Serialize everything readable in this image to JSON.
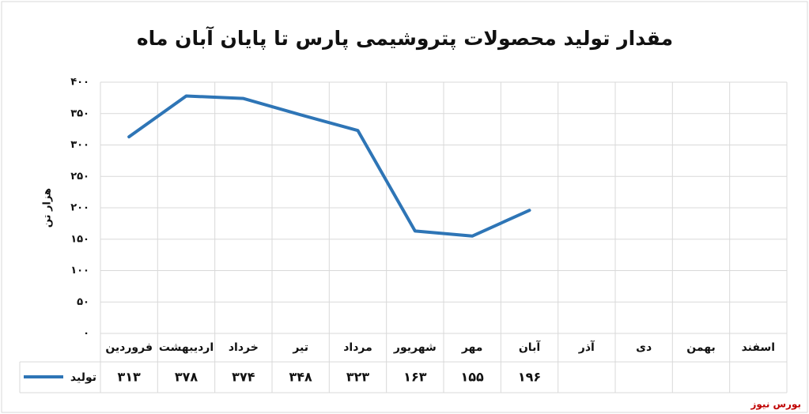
{
  "chart_data": {
    "type": "line",
    "title": "مقدار تولید محصولات پتروشیمی پارس تا پایان آبان ماه",
    "y_label": "هزار تن",
    "source": "بورس نیوز",
    "categories": [
      "فروردین",
      "اردیبهشت",
      "خرداد",
      "تیر",
      "مرداد",
      "شهریور",
      "مهر",
      "آبان",
      "آذر",
      "دی",
      "بهمن",
      "اسفند"
    ],
    "series": [
      {
        "name": "تولید",
        "color": "#2e75b6",
        "values": [
          313,
          378,
          374,
          348,
          323,
          163,
          155,
          196,
          null,
          null,
          null,
          null
        ],
        "value_labels": [
          "۳۱۳",
          "۳۷۸",
          "۳۷۴",
          "۳۴۸",
          "۳۲۳",
          "۱۶۳",
          "۱۵۵",
          "۱۹۶",
          null,
          null,
          null,
          null
        ]
      }
    ],
    "ylim": [
      0,
      400
    ],
    "yticks": [
      {
        "value": 0,
        "label": "۰"
      },
      {
        "value": 50,
        "label": "۵۰"
      },
      {
        "value": 100,
        "label": "۱۰۰"
      },
      {
        "value": 150,
        "label": "۱۵۰"
      },
      {
        "value": 200,
        "label": "۲۰۰"
      },
      {
        "value": 250,
        "label": "۲۵۰"
      },
      {
        "value": 300,
        "label": "۳۰۰"
      },
      {
        "value": 350,
        "label": "۳۵۰"
      },
      {
        "value": 400,
        "label": "۴۰۰"
      }
    ],
    "grid": true
  }
}
